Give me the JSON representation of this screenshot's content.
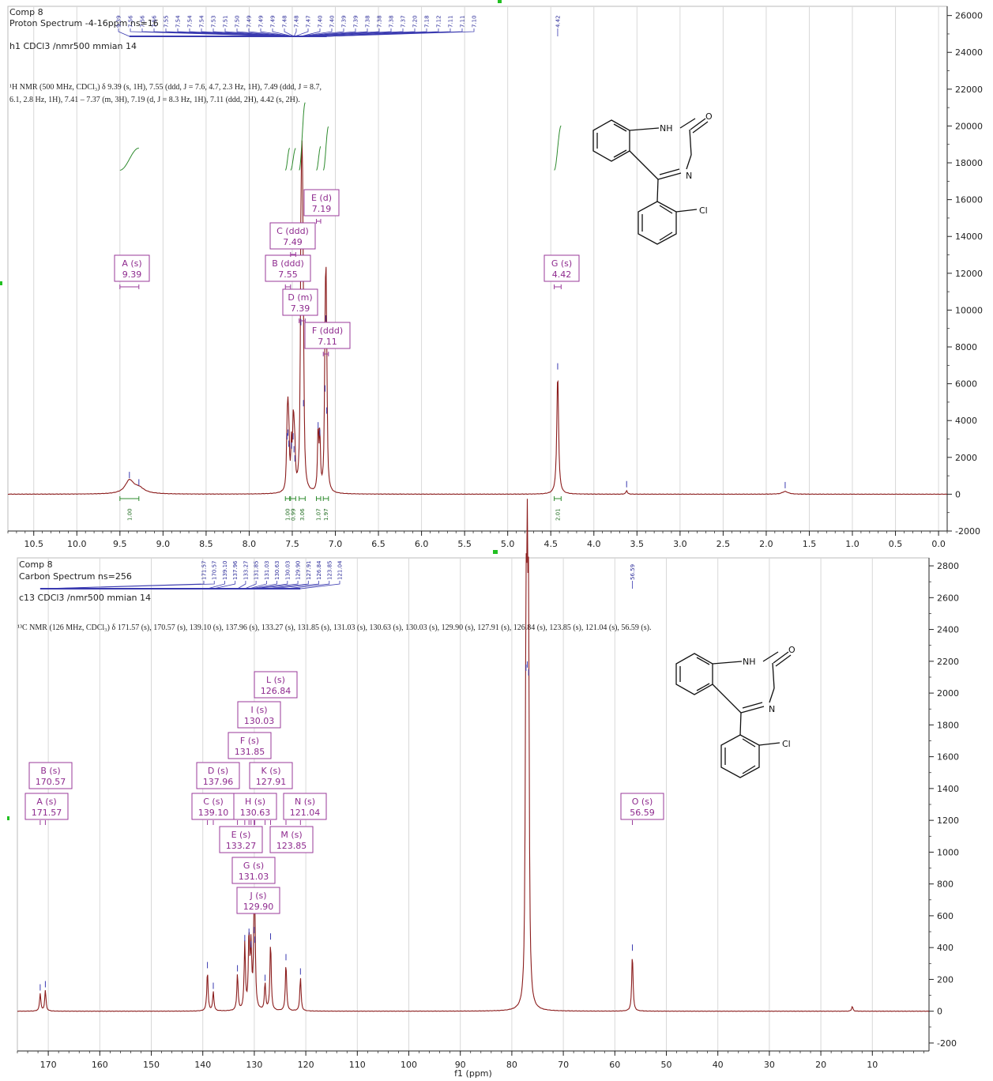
{
  "chart_data": [
    {
      "type": "line",
      "name": "proton",
      "header": [
        "Comp 8",
        "Proton Spectrum -4-16ppm ns=16",
        "h1 CDCl3 /nmr500 mmian 14"
      ],
      "summary": [
        "¹H NMR (500 MHz, CDCl₃) δ 9.39 (s, 1H), 7.55 (ddd, J = 7.6, 4.7, 2.3 Hz, 1H), 7.49 (ddd, J = 8.7,",
        "6.1, 2.8 Hz, 1H), 7.41 – 7.37 (m, 3H), 7.19 (d, J = 8.3 Hz, 1H), 7.11 (ddd, 2H), 4.42 (s, 2H)."
      ],
      "xlabel": "",
      "xlim": [
        10.8,
        -0.1
      ],
      "ylim": [
        -2000,
        26500
      ],
      "x_ticks": [
        "10.5",
        "10.0",
        "9.5",
        "9.0",
        "8.5",
        "8.0",
        "7.5",
        "7.0",
        "6.5",
        "6.0",
        "5.5",
        "5.0",
        "4.5",
        "4.0",
        "3.5",
        "3.0",
        "2.5",
        "2.0",
        "1.5",
        "1.0",
        "0.5",
        "0.0"
      ],
      "y_ticks": [
        "-2000",
        "0",
        "2000",
        "4000",
        "6000",
        "8000",
        "10000",
        "12000",
        "14000",
        "16000",
        "18000",
        "20000",
        "22000",
        "24000",
        "26000"
      ],
      "peak_labels": [
        "9.39",
        "7.56",
        "7.56",
        "7.56",
        "7.55",
        "7.54",
        "7.54",
        "7.54",
        "7.53",
        "7.51",
        "7.50",
        "7.49",
        "7.49",
        "7.49",
        "7.48",
        "7.48",
        "7.47",
        "7.40",
        "7.40",
        "7.39",
        "7.39",
        "7.38",
        "7.38",
        "7.38",
        "7.37",
        "7.20",
        "7.18",
        "7.12",
        "7.11",
        "7.11",
        "7.10",
        "4.42"
      ],
      "peaks": [
        {
          "x": 9.39,
          "y": 700,
          "w": 0.06
        },
        {
          "x": 9.28,
          "y": 300,
          "w": 0.08
        },
        {
          "x": 7.56,
          "y": 2800,
          "w": 0.008
        },
        {
          "x": 7.55,
          "y": 3000,
          "w": 0.008
        },
        {
          "x": 7.54,
          "y": 2400,
          "w": 0.008
        },
        {
          "x": 7.51,
          "y": 2300,
          "w": 0.008
        },
        {
          "x": 7.49,
          "y": 2800,
          "w": 0.008
        },
        {
          "x": 7.48,
          "y": 2100,
          "w": 0.008
        },
        {
          "x": 7.47,
          "y": 1600,
          "w": 0.008
        },
        {
          "x": 7.4,
          "y": 9000,
          "w": 0.008
        },
        {
          "x": 7.39,
          "y": 11600,
          "w": 0.008
        },
        {
          "x": 7.38,
          "y": 10000,
          "w": 0.008
        },
        {
          "x": 7.37,
          "y": 4600,
          "w": 0.008
        },
        {
          "x": 7.2,
          "y": 3400,
          "w": 0.008
        },
        {
          "x": 7.18,
          "y": 3000,
          "w": 0.008
        },
        {
          "x": 7.12,
          "y": 5400,
          "w": 0.008
        },
        {
          "x": 7.11,
          "y": 9200,
          "w": 0.008
        },
        {
          "x": 7.1,
          "y": 4200,
          "w": 0.008
        },
        {
          "x": 4.42,
          "y": 6600,
          "w": 0.012
        },
        {
          "x": 3.62,
          "y": 200,
          "w": 0.01
        },
        {
          "x": 1.78,
          "y": 150,
          "w": 0.04
        }
      ],
      "integrals": [
        {
          "from": 9.5,
          "to": 9.28,
          "value": "1.00"
        },
        {
          "from": 7.58,
          "to": 7.53,
          "value": "1.00"
        },
        {
          "from": 7.52,
          "to": 7.46,
          "value": "0.99"
        },
        {
          "from": 7.42,
          "to": 7.35,
          "value": "3.06"
        },
        {
          "from": 7.22,
          "to": 7.17,
          "value": "1.07"
        },
        {
          "from": 7.14,
          "to": 7.08,
          "value": "1.97"
        },
        {
          "from": 4.46,
          "to": 4.38,
          "value": "2.01"
        }
      ],
      "multiplets": [
        {
          "label": "A (s)",
          "value": "9.39",
          "x": 9.39,
          "ppm_from": 9.5,
          "ppm_to": 9.28
        },
        {
          "label": "B (ddd)",
          "value": "7.55",
          "x": 7.55,
          "ppm_from": 7.58,
          "ppm_to": 7.52
        },
        {
          "label": "C (ddd)",
          "value": "7.49",
          "x": 7.49,
          "ppm_from": 7.52,
          "ppm_to": 7.46
        },
        {
          "label": "D (m)",
          "value": "7.39",
          "x": 7.39,
          "ppm_from": 7.42,
          "ppm_to": 7.35
        },
        {
          "label": "E (d)",
          "value": "7.19",
          "x": 7.19,
          "ppm_from": 7.22,
          "ppm_to": 7.17
        },
        {
          "label": "F (ddd)",
          "value": "7.11",
          "x": 7.11,
          "ppm_from": 7.14,
          "ppm_to": 7.08
        },
        {
          "label": "G (s)",
          "value": "4.42",
          "x": 4.42,
          "ppm_from": 4.46,
          "ppm_to": 4.38
        }
      ],
      "molecule_labels": [
        "NH",
        "O",
        "N",
        "Cl"
      ]
    },
    {
      "type": "line",
      "name": "carbon",
      "header": [
        "Comp 8",
        "Carbon Spectrum ns=256",
        "c13 CDCl3 /nmr500 mmian 14"
      ],
      "summary": [
        "¹³C NMR (126 MHz, CDCl₃) δ 171.57 (s), 170.57 (s), 139.10 (s), 137.96 (s), 133.27 (s), 131.85 (s), 131.03 (s), 130.63 (s), 130.03 (s), 129.90 (s), 127.91 (s), 126.84 (s), 123.85 (s), 121.04 (s), 56.59 (s)."
      ],
      "xlabel": "f1 (ppm)",
      "xlim": [
        176,
        -1
      ],
      "ylim": [
        -250,
        2850
      ],
      "x_ticks": [
        "170",
        "160",
        "150",
        "140",
        "130",
        "120",
        "110",
        "100",
        "90",
        "80",
        "70",
        "60",
        "50",
        "40",
        "30",
        "20",
        "10"
      ],
      "y_ticks": [
        "-200",
        "0",
        "200",
        "400",
        "600",
        "800",
        "1000",
        "1200",
        "1400",
        "1600",
        "1800",
        "2000",
        "2200",
        "2400",
        "2600",
        "2800"
      ],
      "peak_labels": [
        "171.57",
        "170.57",
        "139.10",
        "137.96",
        "133.27",
        "131.85",
        "131.03",
        "130.63",
        "130.03",
        "129.90",
        "127.91",
        "126.84",
        "123.85",
        "121.04",
        "56.59"
      ],
      "peaks": [
        {
          "x": 171.57,
          "y": 110
        },
        {
          "x": 170.57,
          "y": 130
        },
        {
          "x": 139.1,
          "y": 250
        },
        {
          "x": 137.96,
          "y": 120
        },
        {
          "x": 133.27,
          "y": 230
        },
        {
          "x": 131.85,
          "y": 420
        },
        {
          "x": 131.03,
          "y": 460
        },
        {
          "x": 130.63,
          "y": 380
        },
        {
          "x": 130.03,
          "y": 470
        },
        {
          "x": 129.9,
          "y": 410
        },
        {
          "x": 127.91,
          "y": 170
        },
        {
          "x": 126.84,
          "y": 430
        },
        {
          "x": 123.85,
          "y": 300
        },
        {
          "x": 121.04,
          "y": 210
        },
        {
          "x": 77.25,
          "y": 2120
        },
        {
          "x": 77.0,
          "y": 2140
        },
        {
          "x": 76.75,
          "y": 2090
        },
        {
          "x": 56.59,
          "y": 360
        },
        {
          "x": 13.9,
          "y": 30
        }
      ],
      "multiplets": [
        {
          "label": "A (s)",
          "value": "171.57",
          "x": 171.57
        },
        {
          "label": "B (s)",
          "value": "170.57",
          "x": 170.57
        },
        {
          "label": "C (s)",
          "value": "139.10",
          "x": 139.1
        },
        {
          "label": "D (s)",
          "value": "137.96",
          "x": 137.96
        },
        {
          "label": "E (s)",
          "value": "133.27",
          "x": 133.27
        },
        {
          "label": "F (s)",
          "value": "131.85",
          "x": 131.85
        },
        {
          "label": "G (s)",
          "value": "131.03",
          "x": 131.03
        },
        {
          "label": "H (s)",
          "value": "130.63",
          "x": 130.63
        },
        {
          "label": "I (s)",
          "value": "130.03",
          "x": 130.03
        },
        {
          "label": "J (s)",
          "value": "129.90",
          "x": 129.9
        },
        {
          "label": "K (s)",
          "value": "127.91",
          "x": 127.91
        },
        {
          "label": "L (s)",
          "value": "126.84",
          "x": 126.84
        },
        {
          "label": "M (s)",
          "value": "123.85",
          "x": 123.85
        },
        {
          "label": "N (s)",
          "value": "121.04",
          "x": 121.04
        },
        {
          "label": "O (s)",
          "value": "56.59",
          "x": 56.59
        }
      ],
      "molecule_labels": [
        "NH",
        "O",
        "N",
        "Cl"
      ]
    }
  ],
  "colors": {
    "spectrum": "#8b1c1c",
    "integral": "#2e8b2e",
    "multiplet": "#9a3a9a",
    "peak_label": "#2e2e9a",
    "axis": "#222222",
    "grid": "#d8d8d8"
  }
}
